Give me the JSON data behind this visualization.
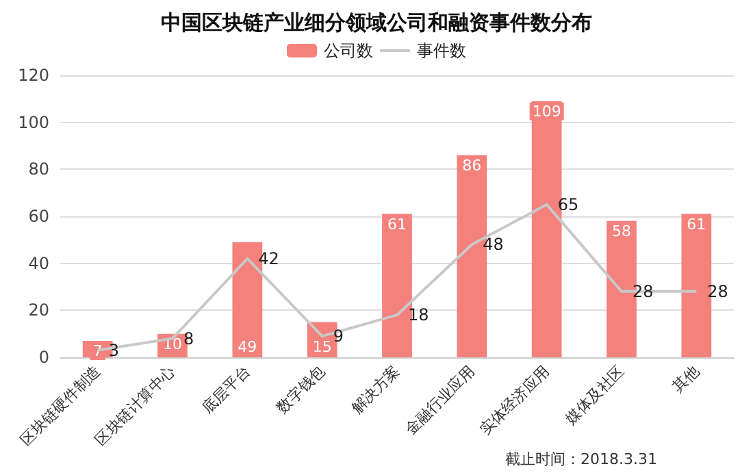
{
  "chart_data": {
    "type": "bar",
    "title": "中国区块链产业细分领域公司和融资事件数分布",
    "categories": [
      "区块链硬件制造",
      "区块链计算中心",
      "底层平台",
      "数字钱包",
      "解决方案",
      "金融行业应用",
      "实体经济应用",
      "媒体及社区",
      "其他"
    ],
    "series": [
      {
        "name": "公司数",
        "color": "#f4817c",
        "values": [
          7,
          10,
          49,
          15,
          61,
          86,
          109,
          58,
          61
        ]
      },
      {
        "name": "事件数",
        "type": "line",
        "color": "#c8c8c8",
        "values": [
          3,
          8,
          42,
          9,
          18,
          48,
          65,
          28,
          28
        ]
      }
    ],
    "ylim": [
      0,
      120
    ],
    "yticks": [
      0,
      20,
      40,
      60,
      80,
      100,
      120
    ],
    "grid": "y",
    "legend": "top",
    "marker": "none",
    "line_style": "solid",
    "data_labels": true,
    "annotations": [
      "截止时间：2018.3.31"
    ]
  }
}
